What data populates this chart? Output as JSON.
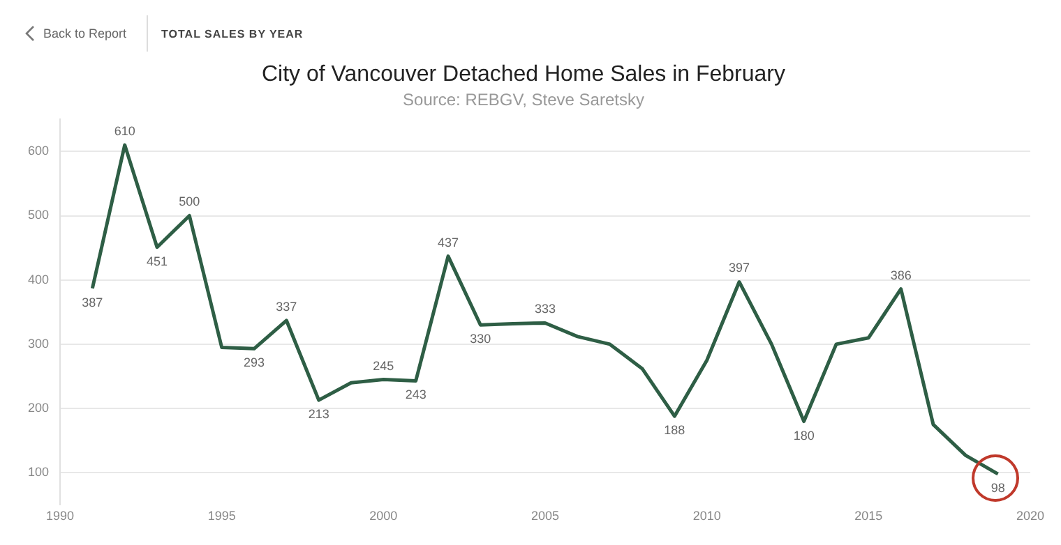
{
  "chart_data": {
    "type": "line",
    "title": "City of Vancouver Detached Home Sales in February",
    "subtitle": "Source: REBGV, Steve Saretsky",
    "annotations": [
      "Back to Report",
      "TOTAL SALES BY YEAR"
    ],
    "x": [
      1991,
      1992,
      1993,
      1994,
      1995,
      1996,
      1997,
      1998,
      1999,
      2000,
      2001,
      2002,
      2003,
      2004,
      2005,
      2006,
      2007,
      2008,
      2009,
      2010,
      2011,
      2012,
      2013,
      2014,
      2015,
      2016,
      2017,
      2018,
      2019
    ],
    "series": [
      {
        "color": "#2e5e45",
        "values": [
          387,
          610,
          451,
          500,
          295,
          293,
          337,
          213,
          240,
          245,
          243,
          437,
          330,
          332,
          333,
          312,
          300,
          262,
          188,
          275,
          397,
          300,
          180,
          300,
          310,
          386,
          175,
          127,
          98
        ],
        "value_labels": [
          "387",
          "610",
          "451",
          "500",
          null,
          "293",
          "337",
          "213",
          null,
          "245",
          "243",
          "437",
          "330",
          null,
          "333",
          null,
          null,
          null,
          "188",
          null,
          "397",
          null,
          "180",
          null,
          null,
          "386",
          null,
          null,
          "98"
        ]
      }
    ],
    "xlim": [
      1990,
      2020
    ],
    "xticks": [
      1990,
      1995,
      2000,
      2005,
      2010,
      2015,
      2020
    ],
    "ylim": [
      50,
      650
    ],
    "yticks": [
      100,
      200,
      300,
      400,
      500,
      600
    ],
    "grid": "y",
    "legend": false,
    "marker": "none",
    "line_style": "solid"
  }
}
